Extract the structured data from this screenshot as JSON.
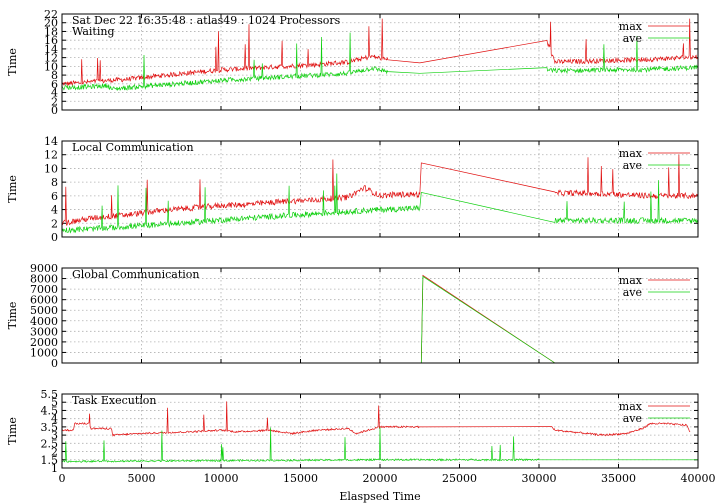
{
  "chart_data": [
    {
      "type": "line",
      "title": "Sat Dec 22 16:35:48 : atlas49 : 1024 Processors",
      "subtitle": "Waiting",
      "xlabel": "",
      "ylabel": "Time",
      "xlim": [
        0,
        40000
      ],
      "ylim": [
        0,
        22
      ],
      "yticks": [
        0,
        2,
        4,
        6,
        8,
        10,
        12,
        14,
        16,
        18,
        20,
        22
      ],
      "legend": "top-right",
      "grid": true,
      "series": [
        {
          "name": "max",
          "color": "#e01010",
          "x": [
            0,
            1000,
            2000,
            3000,
            4000,
            5000,
            6000,
            8000,
            10000,
            12000,
            14000,
            16000,
            18000,
            19500,
            20500,
            22500,
            30500,
            31000,
            33000,
            35000,
            37000,
            39000,
            40000
          ],
          "values": [
            6,
            6.2,
            6.5,
            6.8,
            7,
            7.4,
            7.8,
            8.5,
            9.2,
            9.6,
            10,
            10.4,
            11,
            12.3,
            11.5,
            10.8,
            15.8,
            11,
            11.2,
            11.4,
            11.6,
            12,
            12.2
          ]
        },
        {
          "name": "ave",
          "color": "#10d010",
          "x": [
            0,
            1000,
            2000,
            2900,
            3100,
            5000,
            8000,
            10000,
            12000,
            14000,
            16000,
            18000,
            19500,
            20500,
            22500,
            30500,
            31000,
            33000,
            35000,
            37000,
            39000,
            40000
          ],
          "values": [
            5.2,
            5.2,
            5.4,
            5.6,
            4.8,
            5.4,
            6.2,
            6.8,
            7.2,
            7.6,
            8,
            8.4,
            9.6,
            8.8,
            8.4,
            9.2,
            9,
            9.1,
            9.2,
            9.3,
            9.6,
            9.8
          ]
        }
      ]
    },
    {
      "type": "line",
      "title": "Local Communication",
      "xlabel": "",
      "ylabel": "Time",
      "xlim": [
        0,
        40000
      ],
      "ylim": [
        0,
        14
      ],
      "yticks": [
        0,
        2,
        4,
        6,
        8,
        10,
        12,
        14
      ],
      "legend": "top-right",
      "grid": true,
      "series": [
        {
          "name": "max",
          "color": "#e01010",
          "x": [
            0,
            2000,
            4000,
            6000,
            8000,
            10000,
            12000,
            14000,
            16000,
            18000,
            19000,
            20000,
            21000,
            22500,
            22600,
            31000,
            31200,
            33000,
            35000,
            37000,
            40000
          ],
          "values": [
            2,
            2.8,
            3.2,
            3.8,
            4.2,
            4.6,
            4.8,
            5.2,
            5.4,
            5.8,
            7.2,
            6,
            6.2,
            6.2,
            10.8,
            6.2,
            6.4,
            6.4,
            6.2,
            6,
            6
          ]
        },
        {
          "name": "ave",
          "color": "#10d010",
          "x": [
            0,
            2000,
            4000,
            6000,
            8000,
            10000,
            12000,
            14000,
            16000,
            18000,
            20000,
            22500,
            22600,
            31000,
            31200,
            35000,
            40000
          ],
          "values": [
            1,
            1.2,
            1.5,
            1.8,
            2.1,
            2.5,
            2.8,
            3.1,
            3.4,
            3.7,
            4,
            4.2,
            6.5,
            2.4,
            2.4,
            2.4,
            2.4
          ]
        }
      ]
    },
    {
      "type": "line",
      "title": "Global Communication",
      "xlabel": "",
      "ylabel": "Time",
      "xlim": [
        0,
        40000
      ],
      "ylim": [
        0,
        9000
      ],
      "yticks": [
        0,
        1000,
        2000,
        3000,
        4000,
        5000,
        6000,
        7000,
        8000,
        9000
      ],
      "legend": "top-right",
      "grid": true,
      "series": [
        {
          "name": "max",
          "color": "#e01010",
          "x": [
            0,
            22600,
            22700,
            31000
          ],
          "values": [
            0,
            0,
            8300,
            0
          ]
        },
        {
          "name": "ave",
          "color": "#10d010",
          "x": [
            0,
            22600,
            22700,
            31000
          ],
          "values": [
            0,
            0,
            8200,
            0
          ]
        }
      ]
    },
    {
      "type": "line",
      "title": "Task Execution",
      "xlabel": "Elaspsed Time",
      "ylabel": "Time",
      "xlim": [
        0,
        40000
      ],
      "ylim": [
        1,
        5.5
      ],
      "yticks": [
        1,
        1.5,
        2,
        2.5,
        3,
        3.5,
        4,
        4.5,
        5,
        5.5
      ],
      "xticks": [
        0,
        5000,
        10000,
        15000,
        20000,
        25000,
        30000,
        35000,
        40000
      ],
      "legend": "top-right",
      "grid": true,
      "series": [
        {
          "name": "max",
          "color": "#e01010",
          "x": [
            0,
            700,
            800,
            1700,
            1800,
            3100,
            3200,
            5000,
            8000,
            10000,
            11000,
            13000,
            14500,
            16000,
            18000,
            18500,
            20000,
            22500,
            30800,
            31000,
            34000,
            35500,
            36500,
            37000,
            38000,
            39300,
            39500
          ],
          "values": [
            3.3,
            3.3,
            3.7,
            3.7,
            3.4,
            3.4,
            3.0,
            3.1,
            3.2,
            3.3,
            3.2,
            3.3,
            3.1,
            3.3,
            3.4,
            3.1,
            3.5,
            3.5,
            3.5,
            3.3,
            3.0,
            3.1,
            3.4,
            3.7,
            3.7,
            3.6,
            3.2
          ]
        },
        {
          "name": "ave",
          "color": "#10d010",
          "x": [
            0,
            10000,
            20000,
            30000,
            40000
          ],
          "values": [
            1.4,
            1.45,
            1.5,
            1.5,
            1.5
          ]
        }
      ]
    }
  ]
}
